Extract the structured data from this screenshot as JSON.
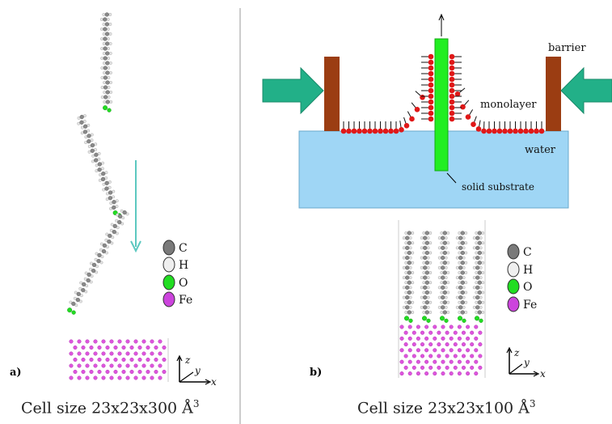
{
  "panel_a": {
    "tag": "a)",
    "caption": "Cell size 23x23x300 Å",
    "caption_exp": "3",
    "legend": [
      {
        "label": "C",
        "color": "#7a7a7a",
        "icon": "carbon-atom-icon"
      },
      {
        "label": "H",
        "color": "#efefef",
        "icon": "hydrogen-atom-icon"
      },
      {
        "label": "O",
        "color": "#22dd22",
        "icon": "oxygen-atom-icon"
      },
      {
        "label": "Fe",
        "color": "#cc44dd",
        "icon": "iron-atom-icon"
      }
    ],
    "axes": {
      "z": "z",
      "y": "y",
      "x": "x"
    }
  },
  "panel_b": {
    "tag": "b)",
    "caption": "Cell size 23x23x100 Å",
    "caption_exp": "3",
    "labels": {
      "barrier": "barrier",
      "monolayer": "monolayer",
      "water": "water",
      "substrate": "solid substrate"
    },
    "legend": [
      {
        "label": "C",
        "color": "#7a7a7a",
        "icon": "carbon-atom-icon"
      },
      {
        "label": "H",
        "color": "#efefef",
        "icon": "hydrogen-atom-icon"
      },
      {
        "label": "O",
        "color": "#22dd22",
        "icon": "oxygen-atom-icon"
      },
      {
        "label": "Fe",
        "color": "#cc44dd",
        "icon": "iron-atom-icon"
      }
    ],
    "axes": {
      "z": "z",
      "y": "y",
      "x": "x"
    }
  },
  "colors": {
    "water": "#9fd6f5",
    "barrier": "#9b3d12",
    "arrow": "#22b088",
    "head": "#e01818",
    "substrate": "#22ee22",
    "divider": "#999999",
    "teal_arrow": "#5cc8c0"
  }
}
